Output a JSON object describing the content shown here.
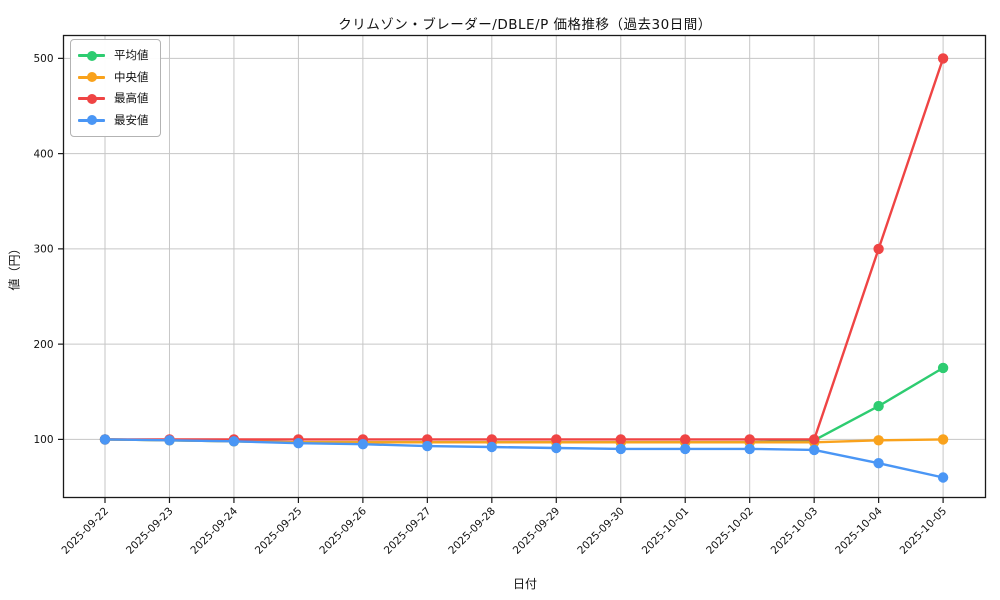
{
  "page": {
    "background": "#ffffff"
  },
  "chart_data": {
    "type": "line",
    "title": "クリムゾン・ブレーダー/DBLE/P 価格推移（過去30日間）",
    "xlabel": "日付",
    "ylabel": "値（円）",
    "x": [
      "2025-09-22",
      "2025-09-23",
      "2025-09-24",
      "2025-09-25",
      "2025-09-26",
      "2025-09-27",
      "2025-09-28",
      "2025-09-29",
      "2025-09-30",
      "2025-10-01",
      "2025-10-02",
      "2025-10-03",
      "2025-10-04",
      "2025-10-05"
    ],
    "series": [
      {
        "name": "平均値",
        "semantic": "average",
        "color": "#2ecc71",
        "values": [
          100,
          99,
          98,
          97,
          97,
          97,
          97,
          97,
          97,
          97,
          97,
          99,
          135,
          175
        ]
      },
      {
        "name": "中央値",
        "semantic": "median",
        "color": "#f9a21c",
        "values": [
          100,
          99,
          98,
          97,
          97,
          97,
          97,
          97,
          97,
          97,
          97,
          97,
          99,
          100
        ]
      },
      {
        "name": "最高値",
        "semantic": "max",
        "color": "#ef4444",
        "values": [
          100,
          100,
          100,
          100,
          100,
          100,
          100,
          100,
          100,
          100,
          100,
          100,
          300,
          500
        ]
      },
      {
        "name": "最安値",
        "semantic": "min",
        "color": "#4a96f5",
        "values": [
          100,
          99,
          98,
          96,
          95,
          93,
          92,
          91,
          90,
          90,
          90,
          89,
          75,
          60
        ]
      }
    ],
    "yticks": [
      100,
      200,
      300,
      400,
      500
    ],
    "ylim": [
      39,
      524
    ],
    "grid": true,
    "legend_position": "top-left",
    "colors": {
      "grid": "#c6c6c6",
      "spine": "#1a1a1a",
      "tick_text": "#111111",
      "background": "#ffffff"
    }
  }
}
